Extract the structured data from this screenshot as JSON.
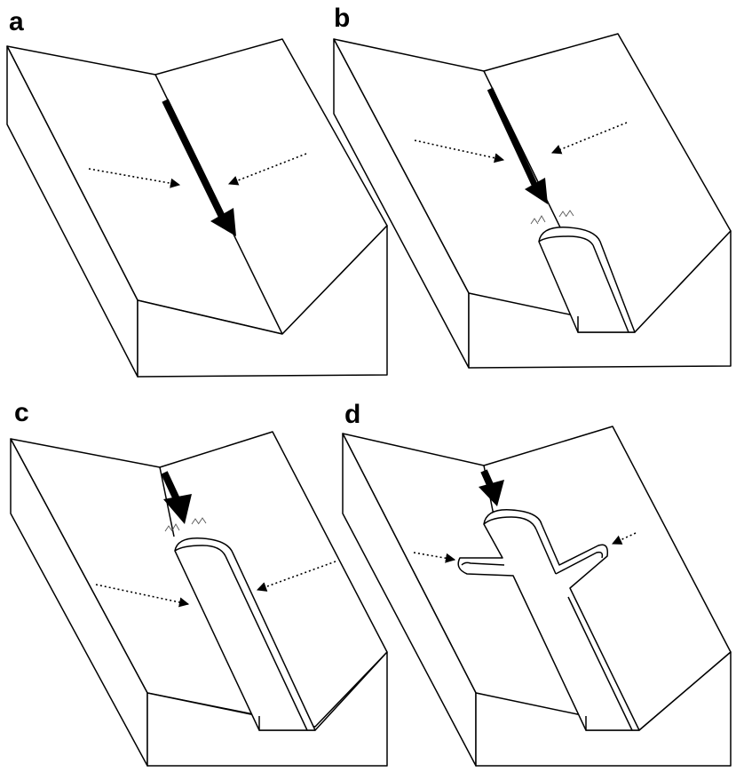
{
  "panels": [
    {
      "id": "a",
      "label": "a"
    },
    {
      "id": "b",
      "label": "b"
    },
    {
      "id": "c",
      "label": "c"
    },
    {
      "id": "d",
      "label": "d"
    }
  ]
}
